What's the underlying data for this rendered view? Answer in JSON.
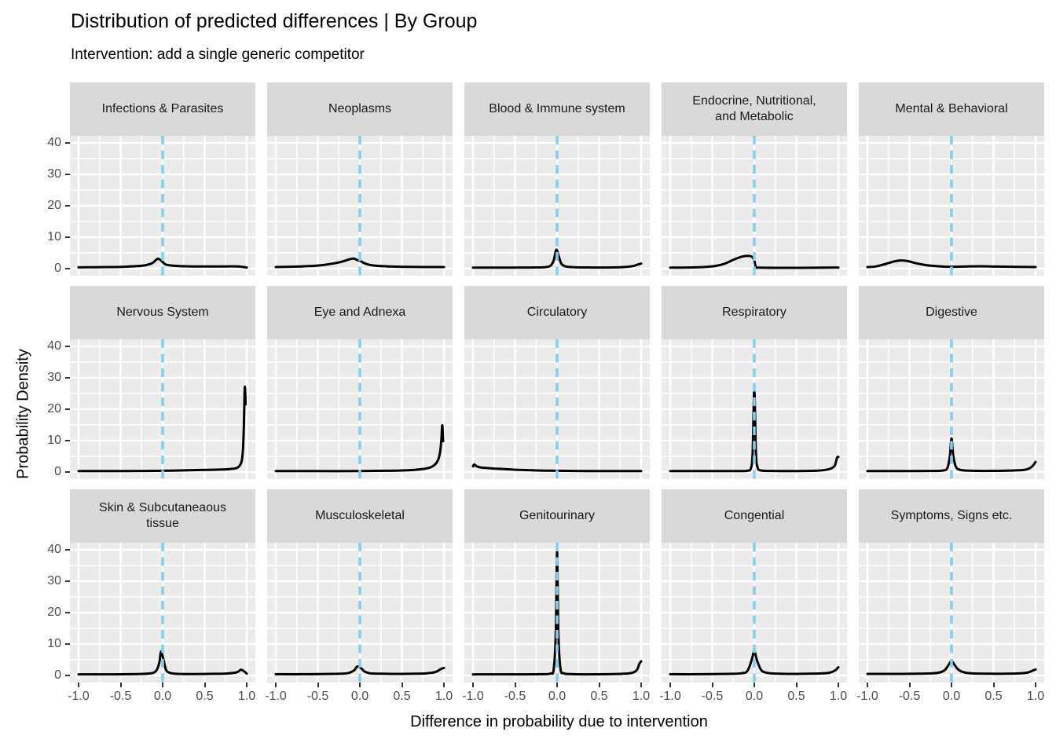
{
  "title": "Distribution of predicted differences | By Group",
  "subtitle": "Intervention: add a single generic competitor",
  "axes": {
    "x_title": "Difference in probability due to intervention",
    "y_title": "Probability Density",
    "x_ticks": [
      "-1.0",
      "-0.5",
      "0.0",
      "0.5",
      "1.0"
    ],
    "y_ticks": [
      "40",
      "30",
      "20",
      "10",
      "0"
    ]
  },
  "colors": {
    "panel_bg": "#EBEBEB",
    "strip_bg": "#D9D9D9",
    "gridline": "#FFFFFF",
    "curve": "#000000",
    "reference_line": "#87CEEB",
    "tick_label": "#4D4D4D",
    "axis_tick": "#333333",
    "strip_text": "#1A1A1A"
  },
  "chart_data": {
    "type": "line",
    "description": "Faceted density curves (3 rows x 5 columns), black density line per facet, dashed skyblue vertical reference line at x=0",
    "x_domain": [
      -1,
      1
    ],
    "y_domain": [
      0,
      40
    ],
    "x_tick_values": [
      -1,
      -0.5,
      0,
      0.5,
      1
    ],
    "y_tick_values": [
      40,
      30,
      20,
      10,
      0
    ],
    "x_minor_values": [
      -0.75,
      -0.25,
      0.25,
      0.75
    ],
    "y_minor_values": [
      5,
      15,
      25,
      35
    ],
    "reference_line_x": 0,
    "grid": true,
    "facets": [
      {
        "label": "Infections & Parasites",
        "points": [
          [
            -1,
            0.4
          ],
          [
            -0.8,
            0.45
          ],
          [
            -0.6,
            0.5
          ],
          [
            -0.45,
            0.6
          ],
          [
            -0.3,
            0.8
          ],
          [
            -0.2,
            1.1
          ],
          [
            -0.12,
            1.8
          ],
          [
            -0.06,
            3.1
          ],
          [
            -0.02,
            2.6
          ],
          [
            0.03,
            1.4
          ],
          [
            0.1,
            1.0
          ],
          [
            0.2,
            0.8
          ],
          [
            0.35,
            0.7
          ],
          [
            0.55,
            0.7
          ],
          [
            0.75,
            0.7
          ],
          [
            0.9,
            0.7
          ],
          [
            1,
            0.35
          ]
        ]
      },
      {
        "label": "Neoplasms",
        "points": [
          [
            -1,
            0.5
          ],
          [
            -0.8,
            0.6
          ],
          [
            -0.6,
            0.8
          ],
          [
            -0.45,
            1.1
          ],
          [
            -0.3,
            1.7
          ],
          [
            -0.2,
            2.3
          ],
          [
            -0.12,
            3.0
          ],
          [
            -0.07,
            3.2
          ],
          [
            -0.03,
            2.7
          ],
          [
            0,
            2.6
          ],
          [
            0.04,
            1.9
          ],
          [
            0.1,
            1.3
          ],
          [
            0.2,
            0.9
          ],
          [
            0.35,
            0.7
          ],
          [
            0.55,
            0.55
          ],
          [
            0.8,
            0.5
          ],
          [
            1,
            0.5
          ]
        ]
      },
      {
        "label": "Blood & Immune system",
        "points": [
          [
            -1,
            0.3
          ],
          [
            -0.6,
            0.3
          ],
          [
            -0.3,
            0.35
          ],
          [
            -0.15,
            0.45
          ],
          [
            -0.08,
            0.9
          ],
          [
            -0.04,
            2.6
          ],
          [
            -0.01,
            6.0
          ],
          [
            0.02,
            4.0
          ],
          [
            0.05,
            1.6
          ],
          [
            0.1,
            0.7
          ],
          [
            0.2,
            0.45
          ],
          [
            0.4,
            0.35
          ],
          [
            0.6,
            0.35
          ],
          [
            0.8,
            0.5
          ],
          [
            0.9,
            0.8
          ],
          [
            0.96,
            1.3
          ],
          [
            1,
            1.6
          ]
        ]
      },
      {
        "label": "Endocrine, Nutritional,\nand Metabolic",
        "points": [
          [
            -1,
            0.3
          ],
          [
            -0.8,
            0.35
          ],
          [
            -0.6,
            0.5
          ],
          [
            -0.45,
            0.9
          ],
          [
            -0.35,
            1.6
          ],
          [
            -0.25,
            2.8
          ],
          [
            -0.15,
            3.8
          ],
          [
            -0.08,
            4.05
          ],
          [
            -0.03,
            3.8
          ],
          [
            0,
            2.6
          ],
          [
            0.02,
            0.5
          ],
          [
            0.06,
            0.3
          ],
          [
            0.3,
            0.25
          ],
          [
            0.6,
            0.25
          ],
          [
            0.85,
            0.3
          ],
          [
            1,
            0.35
          ]
        ]
      },
      {
        "label": "Mental & Behavioral",
        "points": [
          [
            -1,
            0.5
          ],
          [
            -0.9,
            0.7
          ],
          [
            -0.78,
            1.5
          ],
          [
            -0.68,
            2.3
          ],
          [
            -0.6,
            2.6
          ],
          [
            -0.52,
            2.4
          ],
          [
            -0.42,
            1.7
          ],
          [
            -0.3,
            1.1
          ],
          [
            -0.18,
            0.8
          ],
          [
            -0.05,
            0.6
          ],
          [
            0.05,
            0.6
          ],
          [
            0.2,
            0.7
          ],
          [
            0.35,
            0.75
          ],
          [
            0.55,
            0.65
          ],
          [
            0.75,
            0.55
          ],
          [
            1,
            0.5
          ]
        ]
      },
      {
        "label": "Nervous System",
        "points": [
          [
            -1,
            0.3
          ],
          [
            -0.6,
            0.3
          ],
          [
            -0.2,
            0.35
          ],
          [
            0.1,
            0.45
          ],
          [
            0.35,
            0.6
          ],
          [
            0.55,
            0.7
          ],
          [
            0.7,
            0.8
          ],
          [
            0.8,
            0.95
          ],
          [
            0.87,
            1.2
          ],
          [
            0.91,
            1.8
          ],
          [
            0.94,
            3.5
          ],
          [
            0.955,
            7
          ],
          [
            0.965,
            14
          ],
          [
            0.972,
            22
          ],
          [
            0.976,
            26.8
          ],
          [
            0.98,
            26.5
          ],
          [
            0.984,
            24
          ],
          [
            0.986,
            21.5
          ]
        ]
      },
      {
        "label": "Eye and Adnexa",
        "points": [
          [
            -1,
            0.3
          ],
          [
            -0.5,
            0.3
          ],
          [
            0,
            0.3
          ],
          [
            0.3,
            0.4
          ],
          [
            0.5,
            0.5
          ],
          [
            0.65,
            0.7
          ],
          [
            0.76,
            1.0
          ],
          [
            0.84,
            1.5
          ],
          [
            0.89,
            2.3
          ],
          [
            0.93,
            3.8
          ],
          [
            0.955,
            6.5
          ],
          [
            0.97,
            10.5
          ],
          [
            0.978,
            14.6
          ],
          [
            0.983,
            14.2
          ],
          [
            0.987,
            12
          ],
          [
            0.99,
            9.8
          ]
        ]
      },
      {
        "label": "Circulatory",
        "points": [
          [
            -1,
            1.8
          ],
          [
            -0.985,
            2.4
          ],
          [
            -0.96,
            1.9
          ],
          [
            -0.92,
            1.5
          ],
          [
            -0.85,
            1.3
          ],
          [
            -0.75,
            1.1
          ],
          [
            -0.6,
            0.9
          ],
          [
            -0.45,
            0.7
          ],
          [
            -0.3,
            0.55
          ],
          [
            -0.15,
            0.45
          ],
          [
            0,
            0.4
          ],
          [
            0.2,
            0.35
          ],
          [
            0.45,
            0.3
          ],
          [
            0.7,
            0.3
          ],
          [
            1,
            0.3
          ]
        ]
      },
      {
        "label": "Respiratory",
        "points": [
          [
            -1,
            0.3
          ],
          [
            -0.5,
            0.3
          ],
          [
            -0.2,
            0.3
          ],
          [
            -0.08,
            0.4
          ],
          [
            -0.04,
            1.2
          ],
          [
            -0.02,
            6
          ],
          [
            0,
            26
          ],
          [
            0.02,
            6
          ],
          [
            0.04,
            1.4
          ],
          [
            0.08,
            0.5
          ],
          [
            0.2,
            0.35
          ],
          [
            0.4,
            0.3
          ],
          [
            0.6,
            0.35
          ],
          [
            0.75,
            0.45
          ],
          [
            0.85,
            0.7
          ],
          [
            0.92,
            1.2
          ],
          [
            0.96,
            2.2
          ],
          [
            0.985,
            4.6
          ],
          [
            1,
            4.8
          ]
        ]
      },
      {
        "label": "Digestive",
        "points": [
          [
            -1,
            0.3
          ],
          [
            -0.5,
            0.3
          ],
          [
            -0.2,
            0.35
          ],
          [
            -0.1,
            0.5
          ],
          [
            -0.05,
            1.2
          ],
          [
            -0.02,
            5
          ],
          [
            0,
            10.7
          ],
          [
            0.02,
            5.5
          ],
          [
            0.05,
            1.8
          ],
          [
            0.1,
            0.7
          ],
          [
            0.2,
            0.45
          ],
          [
            0.4,
            0.35
          ],
          [
            0.6,
            0.4
          ],
          [
            0.8,
            0.55
          ],
          [
            0.9,
            0.9
          ],
          [
            0.96,
            1.8
          ],
          [
            1,
            3.2
          ]
        ]
      },
      {
        "label": "Skin & Subcutaneaous\ntissue",
        "points": [
          [
            -1,
            0.35
          ],
          [
            -0.6,
            0.35
          ],
          [
            -0.3,
            0.45
          ],
          [
            -0.15,
            0.65
          ],
          [
            -0.08,
            1.4
          ],
          [
            -0.04,
            4
          ],
          [
            -0.02,
            7.6
          ],
          [
            0.01,
            5
          ],
          [
            0.04,
            1.8
          ],
          [
            0.09,
            0.8
          ],
          [
            0.18,
            0.5
          ],
          [
            0.35,
            0.45
          ],
          [
            0.55,
            0.5
          ],
          [
            0.75,
            0.6
          ],
          [
            0.88,
            1.0
          ],
          [
            0.93,
            1.8
          ],
          [
            0.97,
            1.3
          ],
          [
            1,
            0.6
          ]
        ]
      },
      {
        "label": "Musculoskeletal",
        "points": [
          [
            -1,
            0.4
          ],
          [
            -0.6,
            0.4
          ],
          [
            -0.3,
            0.5
          ],
          [
            -0.15,
            0.7
          ],
          [
            -0.07,
            1.6
          ],
          [
            -0.03,
            2.9
          ],
          [
            0.01,
            2.4
          ],
          [
            0.06,
            1.2
          ],
          [
            0.12,
            0.7
          ],
          [
            0.25,
            0.55
          ],
          [
            0.45,
            0.5
          ],
          [
            0.65,
            0.55
          ],
          [
            0.8,
            0.7
          ],
          [
            0.9,
            1.1
          ],
          [
            0.96,
            2.0
          ],
          [
            1,
            2.4
          ]
        ]
      },
      {
        "label": "Genitourinary",
        "points": [
          [
            -1,
            0.35
          ],
          [
            -0.5,
            0.35
          ],
          [
            -0.2,
            0.4
          ],
          [
            -0.08,
            0.6
          ],
          [
            -0.04,
            2
          ],
          [
            -0.015,
            14
          ],
          [
            0,
            39.5
          ],
          [
            0.015,
            14
          ],
          [
            0.04,
            2.2
          ],
          [
            0.08,
            0.7
          ],
          [
            0.15,
            0.45
          ],
          [
            0.35,
            0.35
          ],
          [
            0.6,
            0.4
          ],
          [
            0.8,
            0.55
          ],
          [
            0.9,
            0.9
          ],
          [
            0.95,
            1.8
          ],
          [
            0.98,
            3.8
          ],
          [
            1,
            4.5
          ]
        ]
      },
      {
        "label": "Congential",
        "points": [
          [
            -1,
            0.4
          ],
          [
            -0.6,
            0.4
          ],
          [
            -0.3,
            0.5
          ],
          [
            -0.15,
            0.7
          ],
          [
            -0.08,
            1.5
          ],
          [
            -0.03,
            5
          ],
          [
            0,
            7.7
          ],
          [
            0.03,
            5
          ],
          [
            0.08,
            1.8
          ],
          [
            0.14,
            0.9
          ],
          [
            0.25,
            0.6
          ],
          [
            0.45,
            0.5
          ],
          [
            0.65,
            0.55
          ],
          [
            0.8,
            0.65
          ],
          [
            0.9,
            0.9
          ],
          [
            0.96,
            1.6
          ],
          [
            1,
            2.6
          ]
        ]
      },
      {
        "label": "Symptoms, Signs etc.",
        "points": [
          [
            -1,
            0.5
          ],
          [
            -0.7,
            0.5
          ],
          [
            -0.4,
            0.55
          ],
          [
            -0.25,
            0.65
          ],
          [
            -0.15,
            0.9
          ],
          [
            -0.08,
            1.7
          ],
          [
            -0.03,
            3.6
          ],
          [
            0,
            4.6
          ],
          [
            0.03,
            3.6
          ],
          [
            0.08,
            1.9
          ],
          [
            0.15,
            1.0
          ],
          [
            0.25,
            0.65
          ],
          [
            0.45,
            0.55
          ],
          [
            0.65,
            0.55
          ],
          [
            0.8,
            0.65
          ],
          [
            0.9,
            0.9
          ],
          [
            0.97,
            1.6
          ],
          [
            1,
            1.9
          ]
        ]
      }
    ]
  }
}
